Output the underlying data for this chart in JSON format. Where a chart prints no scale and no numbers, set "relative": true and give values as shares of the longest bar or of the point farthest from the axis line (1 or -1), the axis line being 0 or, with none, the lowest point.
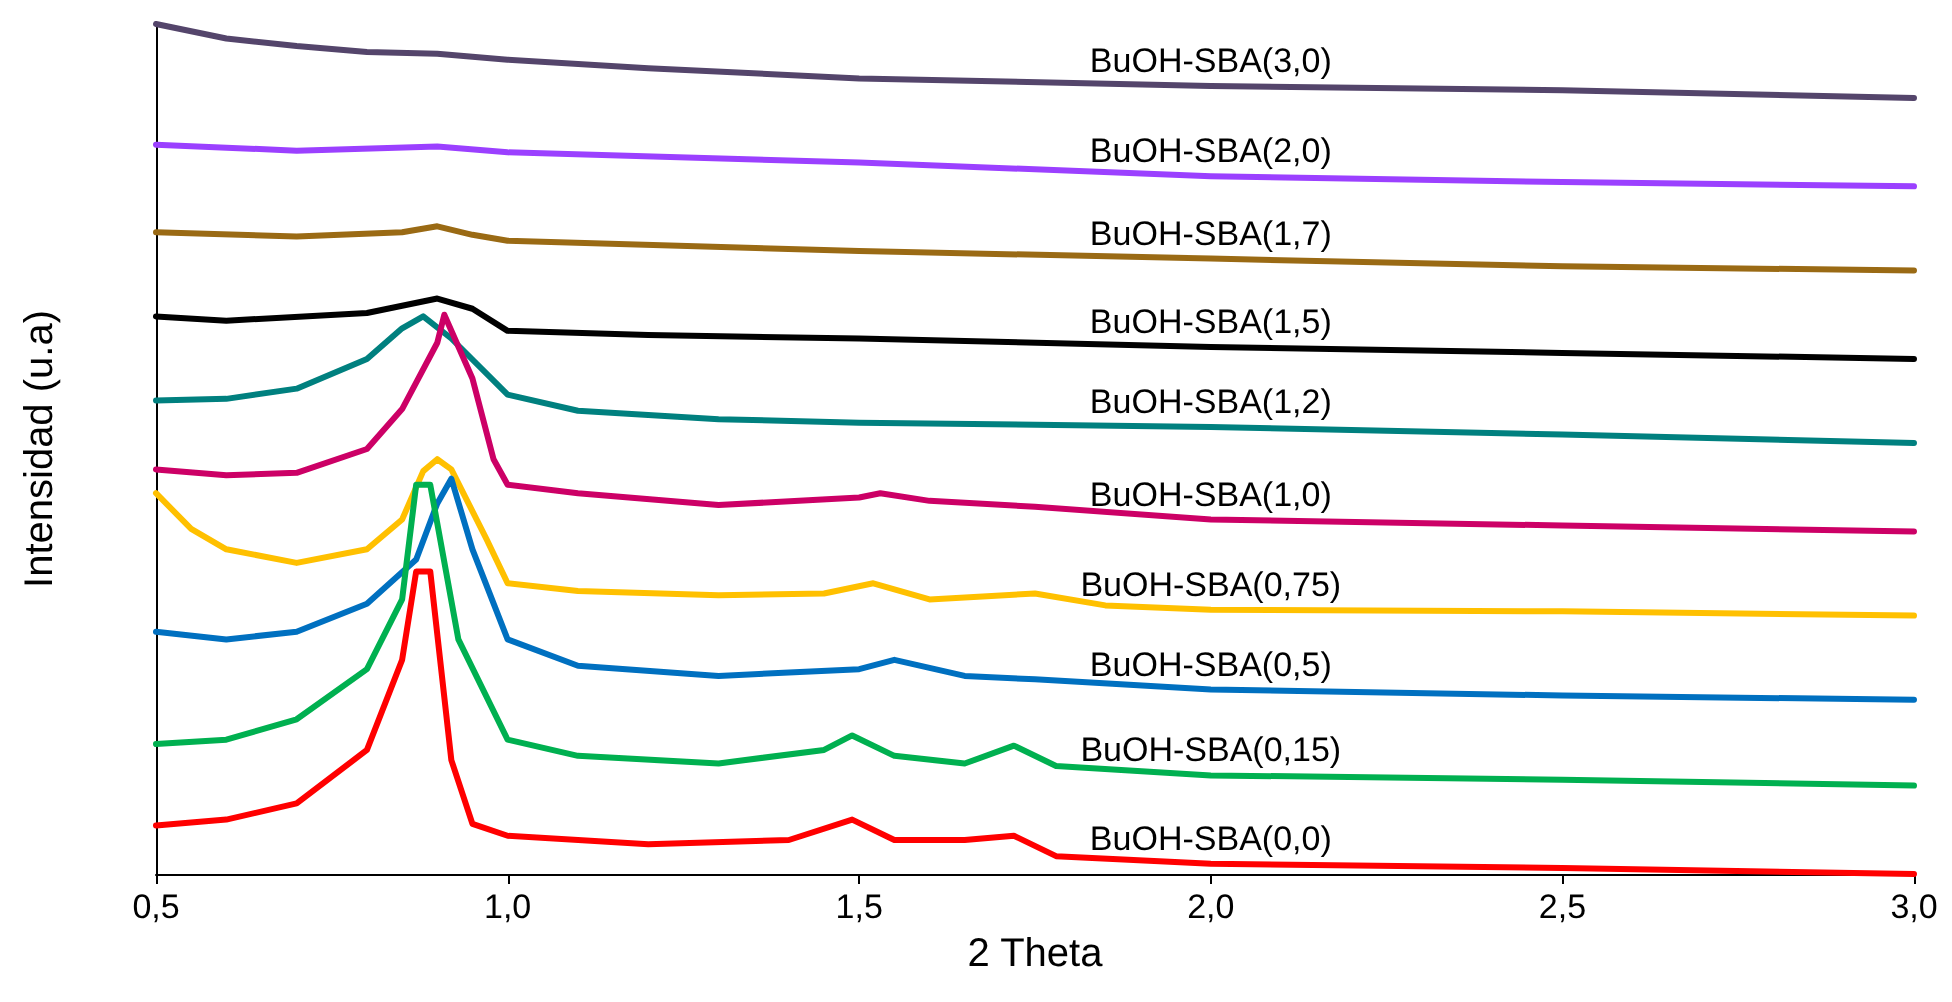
{
  "chart_data": {
    "type": "line",
    "relative": true,
    "xlabel": "2 Theta",
    "ylabel": "Intensidad (u.a)",
    "xlim": [
      0.5,
      3.0
    ],
    "xticks": [
      {
        "value": 0.5,
        "label": "0,5"
      },
      {
        "value": 1.0,
        "label": "1,0"
      },
      {
        "value": 1.5,
        "label": "1,5"
      },
      {
        "value": 2.0,
        "label": "2,0"
      },
      {
        "value": 2.5,
        "label": "2,5"
      },
      {
        "value": 3.0,
        "label": "3,0"
      }
    ],
    "grid": false,
    "legend": false,
    "marker": "none",
    "line_style": "solid",
    "series": [
      {
        "name": "BuOH-SBA(3,0)",
        "color": "#54456b",
        "x": [
          0.5,
          0.6,
          0.7,
          0.8,
          0.9,
          1.0,
          1.2,
          1.5,
          2.0,
          2.5,
          3.0
        ],
        "values": [
          1.0,
          0.983,
          0.974,
          0.967,
          0.965,
          0.958,
          0.948,
          0.936,
          0.927,
          0.922,
          0.913
        ]
      },
      {
        "name": "BuOH-SBA(2,0)",
        "color": "#9b40ff",
        "x": [
          0.5,
          0.7,
          0.9,
          1.0,
          1.5,
          2.0,
          2.5,
          3.0
        ],
        "values": [
          0.858,
          0.851,
          0.856,
          0.849,
          0.837,
          0.821,
          0.814,
          0.809
        ]
      },
      {
        "name": "BuOH-SBA(1,7)",
        "color": "#9a6a14",
        "x": [
          0.5,
          0.7,
          0.85,
          0.9,
          0.95,
          1.0,
          1.5,
          2.0,
          2.5,
          3.0
        ],
        "values": [
          0.755,
          0.75,
          0.755,
          0.762,
          0.752,
          0.745,
          0.733,
          0.724,
          0.715,
          0.71
        ]
      },
      {
        "name": "BuOH-SBA(1,5)",
        "color": "#000000",
        "x": [
          0.5,
          0.6,
          0.8,
          0.9,
          0.95,
          1.0,
          1.2,
          1.5,
          2.0,
          2.5,
          3.0
        ],
        "values": [
          0.656,
          0.651,
          0.66,
          0.677,
          0.665,
          0.639,
          0.634,
          0.63,
          0.62,
          0.613,
          0.606
        ]
      },
      {
        "name": "BuOH-SBA(1,2)",
        "color": "#00807f",
        "x": [
          0.5,
          0.6,
          0.7,
          0.8,
          0.85,
          0.88,
          0.92,
          1.0,
          1.1,
          1.3,
          1.5,
          2.0,
          2.5,
          3.0
        ],
        "values": [
          0.557,
          0.559,
          0.571,
          0.606,
          0.642,
          0.656,
          0.63,
          0.564,
          0.545,
          0.535,
          0.531,
          0.526,
          0.517,
          0.507
        ]
      },
      {
        "name": "BuOH-SBA(1,0)",
        "color": "#cc0066",
        "x": [
          0.5,
          0.6,
          0.7,
          0.8,
          0.85,
          0.9,
          0.91,
          0.95,
          0.98,
          1.0,
          1.1,
          1.3,
          1.5,
          1.53,
          1.6,
          1.75,
          2.0,
          2.5,
          3.0
        ],
        "values": [
          0.476,
          0.469,
          0.472,
          0.5,
          0.547,
          0.625,
          0.658,
          0.583,
          0.488,
          0.458,
          0.448,
          0.434,
          0.443,
          0.448,
          0.439,
          0.432,
          0.417,
          0.41,
          0.403
        ]
      },
      {
        "name": "BuOH-SBA(0,75)",
        "color": "#ffc000",
        "x": [
          0.5,
          0.55,
          0.6,
          0.7,
          0.8,
          0.85,
          0.88,
          0.9,
          0.92,
          0.97,
          1.0,
          1.1,
          1.3,
          1.45,
          1.52,
          1.6,
          1.75,
          1.85,
          2.0,
          2.5,
          3.0
        ],
        "values": [
          0.448,
          0.406,
          0.382,
          0.366,
          0.382,
          0.417,
          0.474,
          0.488,
          0.476,
          0.394,
          0.342,
          0.333,
          0.328,
          0.33,
          0.342,
          0.323,
          0.33,
          0.316,
          0.311,
          0.309,
          0.304
        ]
      },
      {
        "name": "BuOH-SBA(0,5)",
        "color": "#0070c0",
        "x": [
          0.5,
          0.6,
          0.7,
          0.8,
          0.87,
          0.9,
          0.92,
          0.95,
          1.0,
          1.1,
          1.3,
          1.5,
          1.55,
          1.65,
          1.75,
          2.0,
          2.5,
          3.0
        ],
        "values": [
          0.285,
          0.276,
          0.285,
          0.318,
          0.37,
          0.436,
          0.465,
          0.382,
          0.276,
          0.245,
          0.233,
          0.241,
          0.252,
          0.233,
          0.229,
          0.217,
          0.21,
          0.205
        ]
      },
      {
        "name": "BuOH-SBA(0,15)",
        "color": "#00b050",
        "x": [
          0.5,
          0.6,
          0.7,
          0.8,
          0.85,
          0.87,
          0.89,
          0.93,
          1.0,
          1.1,
          1.3,
          1.45,
          1.49,
          1.55,
          1.65,
          1.72,
          1.78,
          2.0,
          2.5,
          3.0
        ],
        "values": [
          0.153,
          0.158,
          0.182,
          0.241,
          0.323,
          0.458,
          0.458,
          0.276,
          0.158,
          0.139,
          0.13,
          0.146,
          0.163,
          0.139,
          0.13,
          0.151,
          0.127,
          0.116,
          0.111,
          0.104
        ]
      },
      {
        "name": "BuOH-SBA(0,0)",
        "color": "#ff0000",
        "x": [
          0.5,
          0.6,
          0.7,
          0.8,
          0.85,
          0.87,
          0.89,
          0.92,
          0.95,
          1.0,
          1.2,
          1.4,
          1.49,
          1.55,
          1.65,
          1.72,
          1.78,
          2.0,
          2.5,
          3.0
        ],
        "values": [
          0.057,
          0.064,
          0.083,
          0.146,
          0.252,
          0.356,
          0.356,
          0.134,
          0.059,
          0.045,
          0.035,
          0.04,
          0.064,
          0.04,
          0.04,
          0.045,
          0.021,
          0.012,
          0.007,
          0
        ]
      }
    ]
  }
}
